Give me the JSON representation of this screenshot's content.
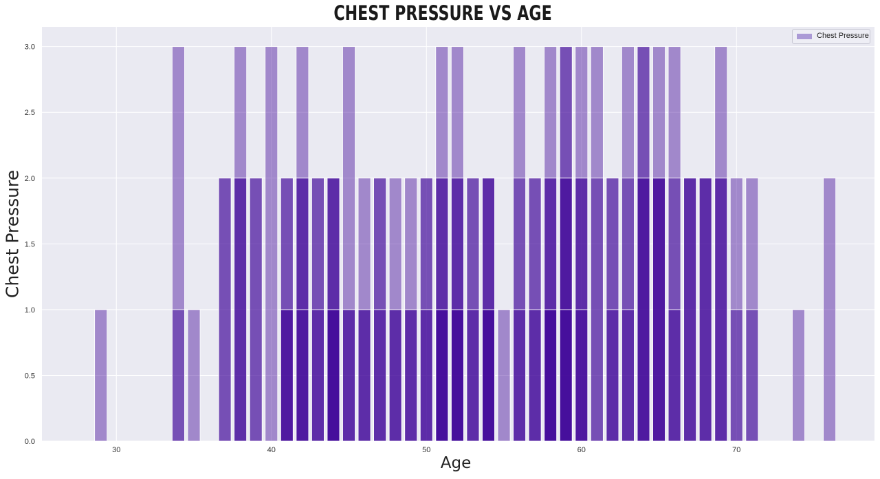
{
  "chart_data": {
    "type": "bar",
    "title": "Chest Pressure vs Age",
    "xlabel": "Age",
    "ylabel": "Chest Pressure",
    "xlim": [
      25.2,
      78.9
    ],
    "ylim": [
      0,
      3.15
    ],
    "xticks": [
      30,
      40,
      50,
      60,
      70
    ],
    "yticks": [
      "0.0",
      "0.5",
      "1.0",
      "1.5",
      "2.0",
      "2.5",
      "3.0"
    ],
    "grid": true,
    "legend": {
      "position": "top-right",
      "entries": [
        "Chest Pressure"
      ]
    },
    "bar_color": "#ab9ad6",
    "bar_edge_color": "#ffffff",
    "background_color": "#eaeaf2",
    "note": "overlapping semi-transparent bars; one bar per record, drawn at age with height = chest pressure",
    "points": [
      {
        "x": 29,
        "y": [
          1
        ]
      },
      {
        "x": 34,
        "y": [
          3,
          1
        ]
      },
      {
        "x": 35,
        "y": [
          1
        ]
      },
      {
        "x": 37,
        "y": [
          2,
          2
        ]
      },
      {
        "x": 38,
        "y": [
          3,
          2,
          2
        ]
      },
      {
        "x": 39,
        "y": [
          2,
          2
        ]
      },
      {
        "x": 40,
        "y": [
          3
        ]
      },
      {
        "x": 41,
        "y": [
          2,
          2,
          1,
          1
        ]
      },
      {
        "x": 42,
        "y": [
          3,
          2,
          2,
          1
        ]
      },
      {
        "x": 43,
        "y": [
          2,
          2,
          1
        ]
      },
      {
        "x": 44,
        "y": [
          2,
          2,
          2,
          1,
          1
        ]
      },
      {
        "x": 45,
        "y": [
          3,
          1,
          1
        ]
      },
      {
        "x": 46,
        "y": [
          2,
          1,
          1
        ]
      },
      {
        "x": 47,
        "y": [
          2,
          2,
          1
        ]
      },
      {
        "x": 48,
        "y": [
          2,
          1,
          1
        ]
      },
      {
        "x": 49,
        "y": [
          2,
          1,
          1
        ]
      },
      {
        "x": 50,
        "y": [
          2,
          2,
          1
        ]
      },
      {
        "x": 51,
        "y": [
          3,
          2,
          2,
          1,
          1
        ]
      },
      {
        "x": 52,
        "y": [
          3,
          2,
          2,
          1,
          1
        ]
      },
      {
        "x": 53,
        "y": [
          2,
          2,
          1
        ]
      },
      {
        "x": 54,
        "y": [
          2,
          2,
          2,
          1,
          1
        ]
      },
      {
        "x": 55,
        "y": [
          1
        ]
      },
      {
        "x": 56,
        "y": [
          3,
          2,
          1
        ]
      },
      {
        "x": 57,
        "y": [
          2,
          2,
          1
        ]
      },
      {
        "x": 58,
        "y": [
          3,
          2,
          2,
          1,
          1
        ]
      },
      {
        "x": 59,
        "y": [
          3,
          3,
          2,
          2,
          1
        ]
      },
      {
        "x": 60,
        "y": [
          3,
          2,
          2,
          1
        ]
      },
      {
        "x": 61,
        "y": [
          3,
          2
        ]
      },
      {
        "x": 62,
        "y": [
          2,
          2,
          1
        ]
      },
      {
        "x": 63,
        "y": [
          3,
          2,
          1
        ]
      },
      {
        "x": 64,
        "y": [
          3,
          3,
          2,
          2
        ]
      },
      {
        "x": 65,
        "y": [
          3,
          2,
          2,
          2
        ]
      },
      {
        "x": 66,
        "y": [
          3,
          2,
          1
        ]
      },
      {
        "x": 67,
        "y": [
          2,
          2,
          2
        ]
      },
      {
        "x": 68,
        "y": [
          2,
          2,
          2
        ]
      },
      {
        "x": 69,
        "y": [
          3,
          2,
          2
        ]
      },
      {
        "x": 70,
        "y": [
          2,
          1
        ]
      },
      {
        "x": 71,
        "y": [
          2,
          1
        ]
      },
      {
        "x": 74,
        "y": [
          1
        ]
      },
      {
        "x": 76,
        "y": [
          2
        ]
      }
    ]
  }
}
